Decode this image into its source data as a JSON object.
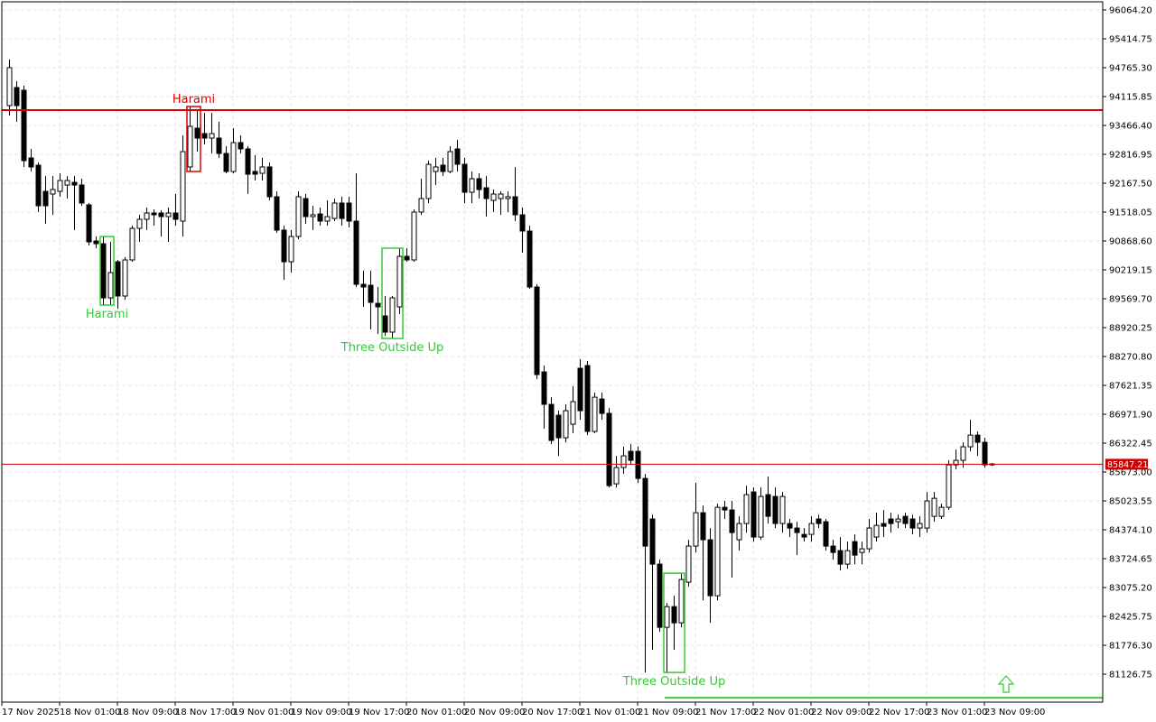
{
  "chart_data": {
    "type": "candlestick",
    "grid": true,
    "up_color": "#ffffff",
    "down_color": "#000000",
    "ylim": [
      80497.6,
      96246.9
    ],
    "yticks": [
      {
        "value": 96064.2,
        "label": "96064.20"
      },
      {
        "value": 95414.75,
        "label": "95414.75"
      },
      {
        "value": 94765.3,
        "label": "94765.30"
      },
      {
        "value": 94115.85,
        "label": "94115.85"
      },
      {
        "value": 93466.4,
        "label": "93466.40"
      },
      {
        "value": 92816.95,
        "label": "92816.95"
      },
      {
        "value": 92167.5,
        "label": "92167.50"
      },
      {
        "value": 91518.05,
        "label": "91518.05"
      },
      {
        "value": 90868.6,
        "label": "90868.60"
      },
      {
        "value": 90219.15,
        "label": "90219.15"
      },
      {
        "value": 89569.7,
        "label": "89569.70"
      },
      {
        "value": 88920.25,
        "label": "88920.25"
      },
      {
        "value": 88270.8,
        "label": "88270.80"
      },
      {
        "value": 87621.35,
        "label": "87621.35"
      },
      {
        "value": 86971.9,
        "label": "86971.90"
      },
      {
        "value": 86322.45,
        "label": "86322.45"
      },
      {
        "value": 85673.0,
        "label": "85673.00"
      },
      {
        "value": 85023.55,
        "label": "85023.55"
      },
      {
        "value": 84374.1,
        "label": "84374.10"
      },
      {
        "value": 83724.65,
        "label": "83724.65"
      },
      {
        "value": 83075.2,
        "label": "83075.20"
      },
      {
        "value": 82425.75,
        "label": "82425.75"
      },
      {
        "value": 81776.3,
        "label": "81776.30"
      },
      {
        "value": 81126.75,
        "label": "81126.75"
      }
    ],
    "x_labels": [
      "17 Nov 2025",
      "18 Nov 01:00",
      "18 Nov 09:00",
      "18 Nov 17:00",
      "19 Nov 01:00",
      "19 Nov 09:00",
      "19 Nov 17:00",
      "20 Nov 01:00",
      "20 Nov 09:00",
      "20 Nov 17:00",
      "21 Nov 01:00",
      "21 Nov 09:00",
      "21 Nov 17:00",
      "22 Nov 01:00",
      "22 Nov 09:00",
      "22 Nov 17:00",
      "23 Nov 01:00",
      "23 Nov 09:00"
    ],
    "current_price": {
      "value": 85847.21,
      "color": "#cc0000"
    },
    "resistance_line": {
      "value": 93811,
      "color": "#dd0000"
    },
    "support_line": {
      "value": 80596,
      "color": "#33cc33",
      "from": 91
    },
    "patterns": [
      {
        "label": "Harami",
        "color": "#dd0000",
        "candles": [
          25,
          26
        ],
        "position": "above"
      },
      {
        "label": "Harami",
        "color": "#33cc33",
        "candles": [
          13,
          14
        ],
        "position": "below"
      },
      {
        "label": "Three Outside Up",
        "color": "#33cc33",
        "candles": [
          52,
          54
        ],
        "position": "below"
      },
      {
        "label": "Three Outside Up",
        "color": "#33cc33",
        "candles": [
          91,
          93
        ],
        "position": "below"
      }
    ],
    "ohlc": [
      [
        93913,
        94948,
        93690,
        94766
      ],
      [
        94319,
        94461,
        93548,
        93913
      ],
      [
        94258,
        94360,
        92533,
        92675
      ],
      [
        92736,
        92939,
        92431,
        92533
      ],
      [
        92573,
        92634,
        91518,
        91660
      ],
      [
        91984,
        92330,
        91254,
        91660
      ],
      [
        91924,
        92330,
        91457,
        92025
      ],
      [
        91984,
        92390,
        91863,
        92228
      ],
      [
        92127,
        92330,
        91822,
        92228
      ],
      [
        92187,
        92330,
        91112,
        92127
      ],
      [
        92127,
        92269,
        91660,
        91721
      ],
      [
        91680,
        91721,
        90766,
        90848
      ],
      [
        90868,
        90969,
        90706,
        90807
      ],
      [
        90807,
        90969,
        89427,
        89589
      ],
      [
        89589,
        90848,
        89427,
        90157
      ],
      [
        90401,
        90442,
        89345,
        89630
      ],
      [
        89630,
        90503,
        89548,
        90442
      ],
      [
        90442,
        91213,
        90401,
        91152
      ],
      [
        91152,
        91457,
        90848,
        91355
      ],
      [
        91355,
        91619,
        91112,
        91497
      ],
      [
        91497,
        91578,
        91213,
        91457
      ],
      [
        91497,
        91558,
        90969,
        91416
      ],
      [
        91416,
        91619,
        90848,
        91497
      ],
      [
        91497,
        91924,
        91213,
        91355
      ],
      [
        91315,
        93243,
        90969,
        92878
      ],
      [
        92533,
        93893,
        92431,
        93446
      ],
      [
        93405,
        93811,
        92878,
        93182
      ],
      [
        93284,
        93751,
        93040,
        93182
      ],
      [
        93182,
        93751,
        92837,
        93284
      ],
      [
        93182,
        93548,
        92736,
        92837
      ],
      [
        92837,
        92999,
        92390,
        92431
      ],
      [
        92431,
        93405,
        92390,
        93081
      ],
      [
        93081,
        93243,
        92837,
        92939
      ],
      [
        92939,
        92999,
        91924,
        92370
      ],
      [
        92431,
        92796,
        92228,
        92370
      ],
      [
        92390,
        92736,
        92228,
        92533
      ],
      [
        92533,
        92634,
        91781,
        91863
      ],
      [
        91863,
        91984,
        91051,
        91112
      ],
      [
        91112,
        91213,
        89995,
        90401
      ],
      [
        90401,
        91112,
        90157,
        90969
      ],
      [
        90969,
        91984,
        90909,
        91863
      ],
      [
        91822,
        91924,
        91254,
        91416
      ],
      [
        91416,
        91660,
        91112,
        91457
      ],
      [
        91477,
        91619,
        91213,
        91315
      ],
      [
        91315,
        91781,
        91213,
        91416
      ],
      [
        91375,
        91822,
        91315,
        91721
      ],
      [
        91721,
        91863,
        91213,
        91375
      ],
      [
        91721,
        91863,
        91172,
        91315
      ],
      [
        91315,
        92390,
        89833,
        89894
      ],
      [
        89894,
        90198,
        89386,
        89833
      ],
      [
        89873,
        90198,
        88879,
        89488
      ],
      [
        89467,
        89833,
        88777,
        89386
      ],
      [
        89183,
        89630,
        88736,
        88818
      ],
      [
        88818,
        89630,
        88676,
        89589
      ],
      [
        89386,
        90706,
        89224,
        90523
      ],
      [
        90523,
        90706,
        90401,
        90442
      ],
      [
        90442,
        91578,
        90401,
        91518
      ],
      [
        91518,
        92269,
        91457,
        91822
      ],
      [
        91822,
        92675,
        91721,
        92593
      ],
      [
        92431,
        92736,
        92127,
        92533
      ],
      [
        92573,
        92736,
        92330,
        92431
      ],
      [
        92431,
        92999,
        92390,
        92878
      ],
      [
        92939,
        93142,
        92431,
        92593
      ],
      [
        92593,
        92736,
        91721,
        91964
      ],
      [
        91964,
        92431,
        91721,
        92269
      ],
      [
        92269,
        92390,
        91822,
        92025
      ],
      [
        92066,
        92330,
        91416,
        91822
      ],
      [
        91781,
        92025,
        91518,
        91924
      ],
      [
        91822,
        91984,
        91457,
        91924
      ],
      [
        91822,
        91984,
        91518,
        91863
      ],
      [
        91863,
        92533,
        91315,
        91457
      ],
      [
        91457,
        91619,
        90604,
        91091
      ],
      [
        91091,
        91213,
        89792,
        89833
      ],
      [
        89833,
        89894,
        87762,
        87864
      ],
      [
        87924,
        88067,
        86646,
        87194
      ],
      [
        87194,
        87356,
        86300,
        86382
      ],
      [
        86950,
        87052,
        86037,
        86443
      ],
      [
        86443,
        87194,
        86341,
        87052
      ],
      [
        86747,
        87600,
        86544,
        87255
      ],
      [
        88006,
        88209,
        86849,
        87052
      ],
      [
        88067,
        88168,
        86503,
        86585
      ],
      [
        86585,
        87458,
        86544,
        87356
      ],
      [
        87315,
        87458,
        86849,
        86991
      ],
      [
        86991,
        87112,
        85326,
        85367
      ],
      [
        85407,
        86037,
        85326,
        85773
      ],
      [
        85773,
        86240,
        85631,
        86037
      ],
      [
        86138,
        86300,
        85834,
        85935
      ],
      [
        86138,
        86240,
        85428,
        85529
      ],
      [
        85529,
        85631,
        81165,
        84007
      ],
      [
        84616,
        84717,
        81672,
        83601
      ],
      [
        83601,
        83702,
        82078,
        82180
      ],
      [
        82180,
        82728,
        81165,
        82646
      ],
      [
        82646,
        82890,
        81672,
        82281
      ],
      [
        82281,
        83398,
        82180,
        83255
      ],
      [
        83195,
        84149,
        83093,
        84007
      ],
      [
        84007,
        85428,
        83864,
        84758
      ],
      [
        84758,
        84920,
        82789,
        84149
      ],
      [
        84149,
        84413,
        82281,
        82890
      ],
      [
        82890,
        84961,
        82789,
        84879
      ],
      [
        84879,
        85022,
        84616,
        84819
      ],
      [
        84819,
        85022,
        83296,
        84311
      ],
      [
        84149,
        84676,
        83905,
        84514
      ],
      [
        84514,
        85367,
        84311,
        85164
      ],
      [
        85225,
        85326,
        84108,
        84210
      ],
      [
        84210,
        85326,
        84149,
        85123
      ],
      [
        85164,
        85570,
        84514,
        84676
      ],
      [
        85123,
        85326,
        84413,
        84514
      ],
      [
        84514,
        85225,
        84311,
        85123
      ],
      [
        84514,
        84616,
        84210,
        84413
      ],
      [
        84413,
        84555,
        83804,
        84311
      ],
      [
        84270,
        84413,
        84108,
        84210
      ],
      [
        84270,
        84676,
        84108,
        84514
      ],
      [
        84616,
        84717,
        84413,
        84514
      ],
      [
        84555,
        84616,
        83905,
        84007
      ],
      [
        84007,
        84149,
        83702,
        83864
      ],
      [
        83905,
        84210,
        83458,
        83601
      ],
      [
        83601,
        84108,
        83499,
        83905
      ],
      [
        84108,
        84270,
        83601,
        83804
      ],
      [
        83864,
        84108,
        83601,
        83946
      ],
      [
        83946,
        84616,
        83864,
        84413
      ],
      [
        84210,
        84758,
        84108,
        84473
      ],
      [
        84514,
        84819,
        84210,
        84453
      ],
      [
        84616,
        84758,
        84311,
        84514
      ],
      [
        84555,
        84717,
        84413,
        84616
      ],
      [
        84676,
        84758,
        84413,
        84514
      ],
      [
        84616,
        84717,
        84270,
        84413
      ],
      [
        84413,
        84676,
        84210,
        84514
      ],
      [
        84413,
        85225,
        84311,
        85022
      ],
      [
        84676,
        85225,
        84555,
        85082
      ],
      [
        84676,
        84961,
        84616,
        84879
      ],
      [
        84879,
        85935,
        84819,
        85834
      ],
      [
        85834,
        86179,
        85732,
        85935
      ],
      [
        85935,
        86341,
        85773,
        86240
      ],
      [
        86240,
        86849,
        86138,
        86503
      ],
      [
        86503,
        86585,
        86037,
        86341
      ],
      [
        86341,
        86443,
        85773,
        85834
      ],
      [
        85854,
        85874,
        85813,
        85847.21
      ]
    ]
  }
}
